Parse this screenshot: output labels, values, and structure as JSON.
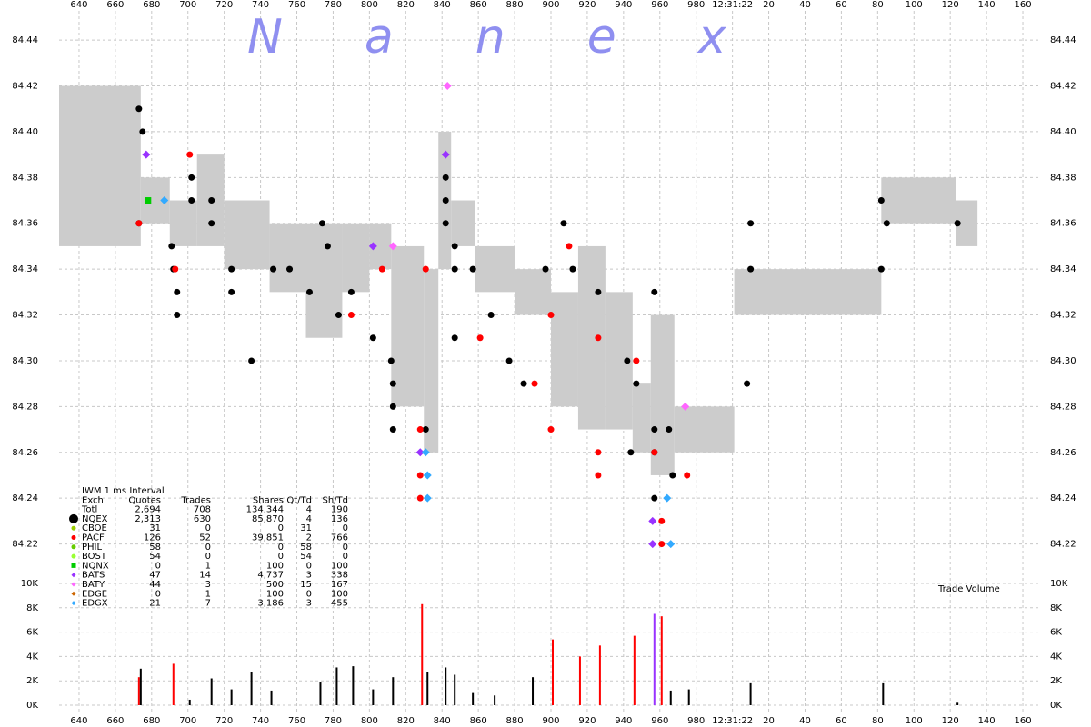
{
  "chart_data": {
    "type": "scatter",
    "watermark": "Nanex",
    "xlim": [
      629,
      1170
    ],
    "xticks": [
      640,
      660,
      680,
      700,
      720,
      740,
      760,
      780,
      800,
      820,
      840,
      860,
      880,
      900,
      920,
      940,
      960,
      980,
      {
        "value": 1000,
        "label": "12:31:22"
      },
      {
        "value": 1020,
        "label": "20"
      },
      {
        "value": 1040,
        "label": "40"
      },
      {
        "value": 1060,
        "label": "60"
      },
      {
        "value": 1080,
        "label": "80"
      },
      {
        "value": 1100,
        "label": "100"
      },
      {
        "value": 1120,
        "label": "120"
      },
      {
        "value": 1140,
        "label": "140"
      },
      {
        "value": 1160,
        "label": "160"
      }
    ],
    "ylim": [
      84.2115,
      84.4575
    ],
    "yticks": [
      84.22,
      84.24,
      84.26,
      84.28,
      {
        "value": 84.3,
        "label": "84.30"
      },
      84.32,
      84.34,
      84.36,
      84.38,
      {
        "value": 84.4,
        "label": "84.40"
      },
      84.42,
      84.44
    ],
    "grid": true,
    "nbbo": {
      "color": "#cccccc",
      "edges": [
        629,
        674,
        690,
        705,
        720,
        745,
        765,
        785,
        800,
        812,
        830,
        838,
        845,
        858,
        880,
        900,
        915,
        930,
        945,
        955,
        968,
        1001,
        1082,
        1123,
        1135
      ],
      "bid": [
        84.35,
        84.36,
        84.35,
        84.35,
        84.34,
        84.33,
        84.31,
        84.33,
        84.34,
        84.28,
        84.26,
        84.34,
        84.35,
        84.33,
        84.32,
        84.28,
        84.27,
        84.27,
        84.26,
        84.25,
        84.26,
        84.32,
        84.36,
        84.35
      ],
      "ask": [
        84.42,
        84.38,
        84.37,
        84.39,
        84.37,
        84.36,
        84.36,
        84.36,
        84.36,
        84.35,
        84.34,
        84.4,
        84.37,
        84.35,
        84.34,
        84.33,
        84.35,
        84.33,
        84.29,
        84.32,
        84.28,
        84.34,
        84.38,
        84.37
      ]
    },
    "stats_table": {
      "title": "IWM 1 ms Interval",
      "columns": [
        "Exch",
        "Quotes",
        "Trades",
        "Shares",
        "Qt/Td",
        "Sh/Td"
      ],
      "total": [
        "Totl",
        "2,694",
        "708",
        "134,344",
        "4",
        "190"
      ]
    },
    "series": [
      {
        "name": "NQEX",
        "color": "#000000",
        "marker": "circle",
        "stats": [
          "2,313",
          "630",
          "85,870",
          "4",
          "136"
        ],
        "x": [
          673,
          675,
          673,
          691,
          692,
          694,
          694,
          702,
          702,
          713,
          713,
          724,
          724,
          735,
          747,
          756,
          767,
          774,
          777,
          783,
          790,
          802,
          812,
          813,
          813,
          813,
          831,
          842,
          842,
          842,
          847,
          847,
          847,
          857,
          867,
          877,
          885,
          897,
          907,
          912,
          926,
          942,
          944,
          947,
          957,
          957,
          957,
          965,
          967,
          957,
          1010,
          1010,
          1008,
          1082,
          1085,
          1082,
          1124
        ],
        "y": [
          84.41,
          84.4,
          84.36,
          84.35,
          84.34,
          84.33,
          84.32,
          84.38,
          84.37,
          84.37,
          84.36,
          84.34,
          84.33,
          84.3,
          84.34,
          84.34,
          84.33,
          84.36,
          84.35,
          84.32,
          84.33,
          84.31,
          84.3,
          84.29,
          84.28,
          84.27,
          84.27,
          84.38,
          84.37,
          84.36,
          84.35,
          84.34,
          84.31,
          84.34,
          84.32,
          84.3,
          84.29,
          84.34,
          84.36,
          84.34,
          84.33,
          84.3,
          84.26,
          84.29,
          84.33,
          84.27,
          84.26,
          84.27,
          84.25,
          84.24,
          84.36,
          84.34,
          84.29,
          84.37,
          84.36,
          84.34,
          84.36
        ]
      },
      {
        "name": "CBOE",
        "color": "#99cc00",
        "marker": "circle",
        "stats": [
          "31",
          "0",
          "0",
          "31",
          "0"
        ],
        "x": [],
        "y": []
      },
      {
        "name": "PACF",
        "color": "#ff0000",
        "marker": "circle",
        "stats": [
          "126",
          "52",
          "39,851",
          "2",
          "766"
        ],
        "x": [
          673,
          701,
          693,
          790,
          807,
          831,
          828,
          828,
          828,
          861,
          891,
          900,
          900,
          910,
          926,
          926,
          926,
          947,
          957,
          961,
          961,
          975
        ],
        "y": [
          84.36,
          84.39,
          84.34,
          84.32,
          84.34,
          84.34,
          84.27,
          84.25,
          84.24,
          84.31,
          84.29,
          84.32,
          84.27,
          84.35,
          84.31,
          84.26,
          84.25,
          84.3,
          84.26,
          84.23,
          84.22,
          84.25
        ]
      },
      {
        "name": "PHIL",
        "color": "#66cc00",
        "marker": "circle",
        "stats": [
          "58",
          "0",
          "0",
          "58",
          "0"
        ],
        "x": [],
        "y": []
      },
      {
        "name": "BOST",
        "color": "#99ff33",
        "marker": "circle",
        "stats": [
          "54",
          "0",
          "0",
          "54",
          "0"
        ],
        "x": [],
        "y": []
      },
      {
        "name": "NQNX",
        "color": "#00cc00",
        "marker": "square",
        "stats": [
          "0",
          "1",
          "100",
          "0",
          "100"
        ],
        "x": [
          678
        ],
        "y": [
          84.37
        ]
      },
      {
        "name": "BATS",
        "color": "#9933ff",
        "marker": "diamond",
        "stats": [
          "47",
          "14",
          "4,737",
          "3",
          "338"
        ],
        "x": [
          677,
          802,
          842,
          828,
          956,
          956
        ],
        "y": [
          84.39,
          84.35,
          84.39,
          84.26,
          84.23,
          84.22
        ]
      },
      {
        "name": "BATY",
        "color": "#ff66ff",
        "marker": "diamond",
        "stats": [
          "44",
          "3",
          "500",
          "15",
          "167"
        ],
        "x": [
          843,
          813,
          974
        ],
        "y": [
          84.42,
          84.35,
          84.28
        ]
      },
      {
        "name": "EDGE",
        "color": "#cc6600",
        "marker": "diamond",
        "stats": [
          "0",
          "1",
          "100",
          "0",
          "100"
        ],
        "x": [],
        "y": []
      },
      {
        "name": "EDGX",
        "color": "#33aaff",
        "marker": "diamond",
        "stats": [
          "21",
          "7",
          "3,186",
          "3",
          "455"
        ],
        "x": [
          687,
          832,
          832,
          831,
          966,
          964
        ],
        "y": [
          84.37,
          84.24,
          84.25,
          84.26,
          84.22,
          84.24
        ]
      }
    ],
    "volume": {
      "label": "Trade Volume",
      "ylim": [
        0,
        10000
      ],
      "yticks": [
        {
          "value": 0,
          "label": "0K"
        },
        {
          "value": 2000,
          "label": "2K"
        },
        {
          "value": 4000,
          "label": "4K"
        },
        {
          "value": 6000,
          "label": "6K"
        },
        {
          "value": 8000,
          "label": "8K"
        },
        {
          "value": 10000,
          "label": "10K"
        }
      ],
      "x": [
        673,
        674,
        692,
        701,
        713,
        724,
        735,
        746,
        773,
        782,
        791,
        802,
        813,
        829,
        832,
        842,
        847,
        857,
        869,
        890,
        901,
        916,
        927,
        946,
        957,
        961,
        966,
        976,
        1010,
        1083,
        1124
      ],
      "values": [
        2300,
        3000,
        3400,
        450,
        2200,
        1300,
        2700,
        1200,
        1900,
        3100,
        3200,
        1300,
        2300,
        8300,
        2700,
        3100,
        2500,
        1000,
        800,
        2300,
        5400,
        4000,
        4900,
        5700,
        7500,
        7300,
        1200,
        1300,
        1800,
        1800,
        200
      ],
      "colors": [
        "#ff0000",
        "#000000",
        "#ff0000",
        "#000000",
        "#000000",
        "#000000",
        "#000000",
        "#000000",
        "#000000",
        "#000000",
        "#000000",
        "#000000",
        "#000000",
        "#ff0000",
        "#000000",
        "#000000",
        "#000000",
        "#000000",
        "#000000",
        "#000000",
        "#ff0000",
        "#ff0000",
        "#ff0000",
        "#ff0000",
        "#9933ff",
        "#ff0000",
        "#000000",
        "#000000",
        "#000000",
        "#000000",
        "#000000"
      ]
    }
  }
}
